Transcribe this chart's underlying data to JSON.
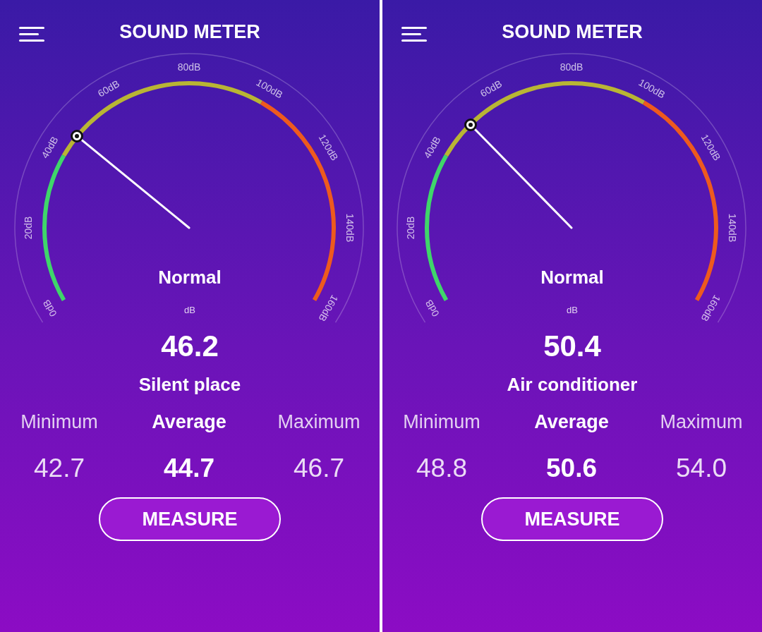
{
  "chart_data": [
    {
      "type": "other",
      "title": "SOUND METER",
      "categories": [
        "Minimum",
        "Average",
        "Maximum"
      ],
      "values": [
        42.7,
        44.7,
        46.7
      ],
      "value_labels": [
        "42.7",
        "44.7",
        "46.7"
      ],
      "annotations": [
        "0dB",
        "20dB",
        "40dB",
        "60dB",
        "80dB",
        "100dB",
        "120dB",
        "140dB",
        "160dB",
        "Normal",
        "dB",
        "46.2",
        "Silent place",
        "MEASURE"
      ]
    },
    {
      "type": "other",
      "title": "SOUND METER",
      "categories": [
        "Minimum",
        "Average",
        "Maximum"
      ],
      "values": [
        48.8,
        50.6,
        54.0
      ],
      "value_labels": [
        "48.8",
        "50.6",
        "54.0"
      ],
      "annotations": [
        "0dB",
        "20dB",
        "40dB",
        "60dB",
        "80dB",
        "100dB",
        "120dB",
        "140dB",
        "160dB",
        "Normal",
        "dB",
        "50.4",
        "Air conditioner",
        "MEASURE"
      ]
    }
  ]
}
